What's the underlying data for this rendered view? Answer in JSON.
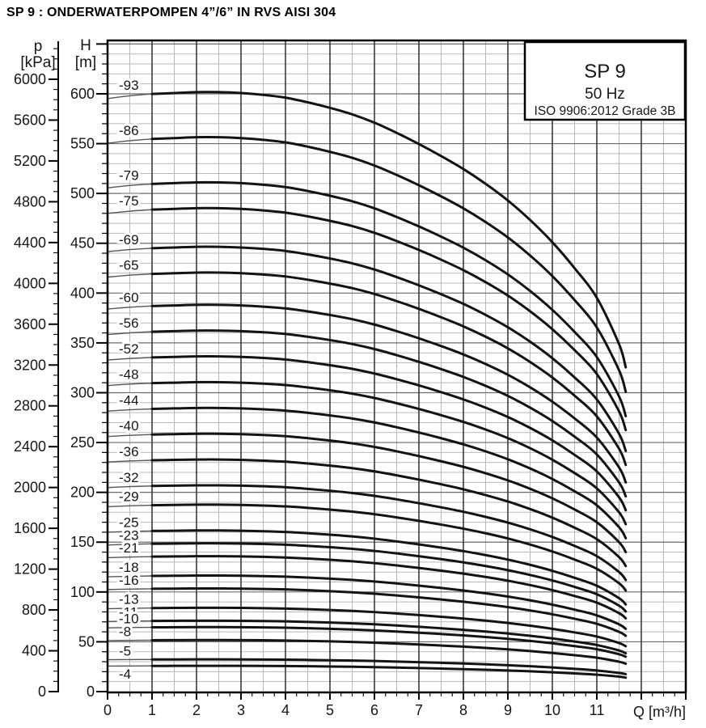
{
  "page": {
    "title": "SP 9 : ONDERWATERPOMPEN 4”/6” IN RVS AISI 304"
  },
  "chart_data": {
    "type": "line",
    "title": "SP 9 : ONDERWATERPOMPEN 4”/6” IN RVS AISI 304",
    "legend": {
      "model": "SP 9",
      "frequency": "50 Hz",
      "standard": "ISO 9906:2012 Grade 3B",
      "position": "top-right"
    },
    "x_axis": {
      "label": "Q [m³/h]",
      "min": 0,
      "max": 13,
      "major_tick": 1,
      "minor_tick": 0.25,
      "labeled_ticks": [
        0,
        1,
        2,
        3,
        4,
        5,
        6,
        7,
        8,
        9,
        10,
        11
      ]
    },
    "y_axis_head": {
      "symbol": "H",
      "unit": "[m]",
      "min": 0,
      "max": 650,
      "major_tick": 50,
      "minor_tick": 10,
      "labeled_ticks": [
        0,
        50,
        100,
        150,
        200,
        250,
        300,
        350,
        400,
        450,
        500,
        550,
        600
      ]
    },
    "y_axis_pressure": {
      "symbol": "p",
      "unit": "[kPa]",
      "min": 0,
      "max": 6300,
      "major_tick": 400,
      "minor_tick": 100,
      "labeled_ticks": [
        0,
        400,
        800,
        1200,
        1600,
        2000,
        2400,
        2800,
        3200,
        3600,
        4000,
        4400,
        4800,
        5200,
        5600,
        6000
      ]
    },
    "grid": {
      "on": true,
      "minor_color": "#b9b9b9",
      "major_h_color": "#6b6b6b",
      "major_v_color": "#3a3a3a",
      "frame_color": "#000000"
    },
    "curve_style": {
      "color": "#131313",
      "thick_width": 3,
      "thin_segment_color": "#555555",
      "thin_segment_width": 1.4
    },
    "flow_range": {
      "min_flow": 1.0,
      "max_flow": 11.65
    },
    "per_stage_curve": {
      "q": [
        0,
        0.5,
        1,
        1.5,
        2,
        2.5,
        3,
        3.5,
        4,
        4.5,
        5,
        5.5,
        6,
        6.5,
        7,
        7.5,
        8,
        8.5,
        9,
        9.5,
        10,
        10.5,
        11,
        11.5,
        11.65
      ],
      "h_per_stage": [
        6.4,
        6.43,
        6.45,
        6.46,
        6.47,
        6.47,
        6.46,
        6.44,
        6.41,
        6.36,
        6.3,
        6.23,
        6.14,
        6.03,
        5.91,
        5.78,
        5.64,
        5.48,
        5.3,
        5.09,
        4.85,
        4.57,
        4.25,
        3.75,
        3.5
      ]
    },
    "curves": [
      {
        "label": "-93",
        "stages": 93,
        "h_at_min_flow": 600,
        "h_at_max_flow": 326
      },
      {
        "label": "-86",
        "stages": 86,
        "h_at_min_flow": 555,
        "h_at_max_flow": 301
      },
      {
        "label": "-79",
        "stages": 79,
        "h_at_min_flow": 510,
        "h_at_max_flow": 277
      },
      {
        "label": "-75",
        "stages": 75,
        "h_at_min_flow": 484,
        "h_at_max_flow": 263
      },
      {
        "label": "-69",
        "stages": 69,
        "h_at_min_flow": 445,
        "h_at_max_flow": 242
      },
      {
        "label": "-65",
        "stages": 65,
        "h_at_min_flow": 419,
        "h_at_max_flow": 228
      },
      {
        "label": "-60",
        "stages": 60,
        "h_at_min_flow": 387,
        "h_at_max_flow": 210
      },
      {
        "label": "-56",
        "stages": 56,
        "h_at_min_flow": 361,
        "h_at_max_flow": 196
      },
      {
        "label": "-52",
        "stages": 52,
        "h_at_min_flow": 335,
        "h_at_max_flow": 182
      },
      {
        "label": "-48",
        "stages": 48,
        "h_at_min_flow": 310,
        "h_at_max_flow": 168
      },
      {
        "label": "-44",
        "stages": 44,
        "h_at_min_flow": 284,
        "h_at_max_flow": 154
      },
      {
        "label": "-40",
        "stages": 40,
        "h_at_min_flow": 258,
        "h_at_max_flow": 140
      },
      {
        "label": "-36",
        "stages": 36,
        "h_at_min_flow": 232,
        "h_at_max_flow": 126
      },
      {
        "label": "-32",
        "stages": 32,
        "h_at_min_flow": 206,
        "h_at_max_flow": 112
      },
      {
        "label": "-29",
        "stages": 29,
        "h_at_min_flow": 187,
        "h_at_max_flow": 102
      },
      {
        "label": "-25",
        "stages": 25,
        "h_at_min_flow": 161,
        "h_at_max_flow": 88
      },
      {
        "label": "-23",
        "stages": 23,
        "h_at_min_flow": 148,
        "h_at_max_flow": 81
      },
      {
        "label": "-21",
        "stages": 21,
        "h_at_min_flow": 135,
        "h_at_max_flow": 74
      },
      {
        "label": "-18",
        "stages": 18,
        "h_at_min_flow": 116,
        "h_at_max_flow": 63
      },
      {
        "label": "-16",
        "stages": 16,
        "h_at_min_flow": 103,
        "h_at_max_flow": 56
      },
      {
        "label": "-13",
        "stages": 13,
        "h_at_min_flow": 84,
        "h_at_max_flow": 46
      },
      {
        "label": "-11",
        "stages": 11,
        "h_at_min_flow": 71,
        "h_at_max_flow": 39
      },
      {
        "label": "-10",
        "stages": 10,
        "h_at_min_flow": 65,
        "h_at_max_flow": 35
      },
      {
        "label": "-8",
        "stages": 8,
        "h_at_min_flow": 52,
        "h_at_max_flow": 28
      },
      {
        "label": "-5",
        "stages": 5,
        "h_at_min_flow": 32,
        "h_at_max_flow": 18
      },
      {
        "label": "-4",
        "stages": 4,
        "h_at_min_flow": 26,
        "h_at_max_flow": 14,
        "label_below": true
      }
    ]
  }
}
